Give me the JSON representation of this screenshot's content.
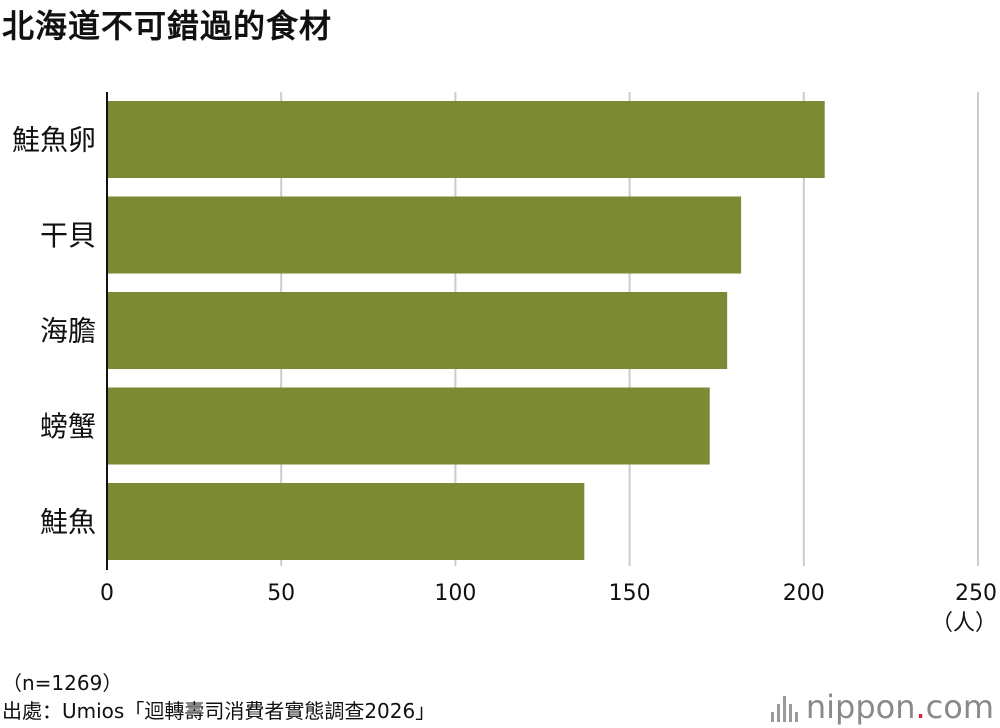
{
  "title": "北海道不可錯過的食材",
  "note": "（n=1269）",
  "source": "出處：Umios「迴轉壽司消費者實態調查2026」",
  "logo": {
    "name": "nippon",
    "dot": ".",
    "suffix": "com",
    "icon": "nippon-logo-bars-icon"
  },
  "colors": {
    "bar": "#7b8a33",
    "grid": "#cccccc",
    "axis": "#111111"
  },
  "chart_data": {
    "type": "bar",
    "orientation": "horizontal",
    "title": "北海道不可錯過的食材",
    "categories": [
      "鮭魚卵",
      "干貝",
      "海膽",
      "螃蟹",
      "鮭魚"
    ],
    "values": [
      206,
      182,
      178,
      173,
      137
    ],
    "xlim": [
      0,
      250
    ],
    "xticks": [
      0,
      50,
      100,
      150,
      200,
      250
    ],
    "xunit": "（人）",
    "grid": true,
    "legend": "none"
  }
}
